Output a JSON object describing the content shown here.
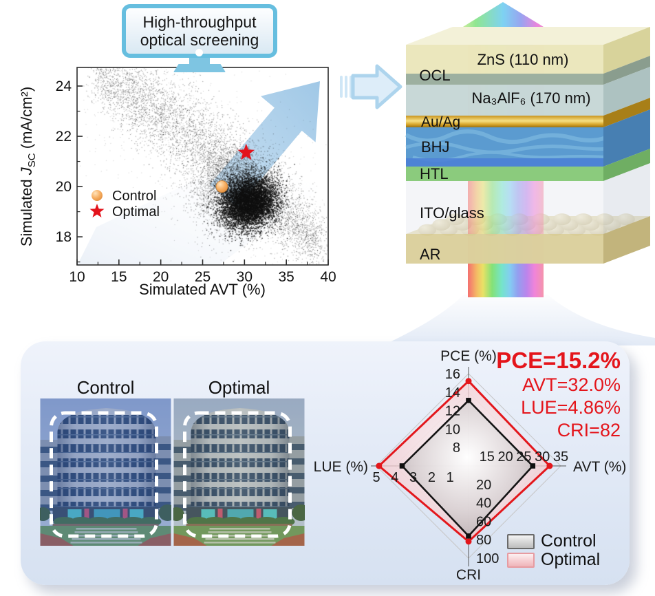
{
  "monitor": {
    "line1": "High-throughput",
    "line2": "optical screening"
  },
  "scatter_labels": {
    "xlabel": "Simulated AVT (%)",
    "ylabel_pre": "Simulated ",
    "ylabel_J": "J",
    "ylabel_sub": "SC",
    "ylabel_post": " (mA/cm²)",
    "legend_control": "Control",
    "legend_optimal": "Optimal"
  },
  "stack": {
    "ocl": "OCL",
    "zns": "ZnS (110 nm)",
    "cryolite": "Na₃AlF₆ (170 nm)",
    "auag": "Au/Ag",
    "bhj": "BHJ",
    "htl": "HTL",
    "ito": "ITO/glass",
    "ar": "AR"
  },
  "panel": {
    "control_label": "Control",
    "optimal_label": "Optimal",
    "stats": {
      "pce": "PCE=15.2%",
      "avt": "AVT=32.0%",
      "lue": "LUE=4.86%",
      "cri": "CRI=82"
    },
    "legend": {
      "control": "Control",
      "optimal": "Optimal"
    }
  },
  "colors": {
    "accent_blue": "#7EC5E2",
    "arrow_blue": "#A6CBE9",
    "stat_red": "#E4151B",
    "optimal_red": "#E3171C",
    "control_black": "#141414",
    "control_tint": "rgba(62,98,178,0.32)",
    "optimal_tint": "rgba(128,142,108,0.20)"
  },
  "chart_data": [
    {
      "type": "scatter",
      "title": "High-throughput optical screening result",
      "xlabel": "Simulated AVT (%)",
      "ylabel": "Simulated JSC (mA/cm2)",
      "xlim": [
        10,
        40
      ],
      "ylim": [
        16.88,
        24.74
      ],
      "xticks": [
        10,
        15,
        20,
        25,
        30,
        35,
        40
      ],
      "yticks": [
        18,
        20,
        22,
        24
      ],
      "legend": [
        "Control",
        "Optimal"
      ],
      "points": {
        "control": [
          27.3,
          20.0
        ],
        "optimal": [
          30.2,
          21.35
        ]
      },
      "cloud": {
        "band": {
          "n": 5200,
          "x0": 12.3,
          "x1": 38.8,
          "yA": 24.45,
          "yB": -5.1,
          "yC": -1.65,
          "sx": 1.05,
          "sy": 0.6,
          "alpha": 0.5
        },
        "mid": {
          "n": 3200,
          "cx": 28.7,
          "cy": 19.85,
          "sx": 2.3,
          "sy": 0.8,
          "alpha": 0.5
        },
        "core": {
          "n": 6500,
          "cx": 30.5,
          "cy": 19.4,
          "sx": 1.65,
          "sy": 0.52,
          "rot": -10,
          "alpha": 0.9
        },
        "halo": {
          "n": 900,
          "alpha": 0.22
        }
      }
    },
    {
      "type": "radar",
      "axes": [
        {
          "key": "PCE",
          "title": "PCE (%)",
          "min": 6,
          "max": 16,
          "ticks": [
            8,
            10,
            12,
            14,
            16
          ]
        },
        {
          "key": "AVT",
          "title": "AVT (%)",
          "min": 10,
          "max": 35,
          "ticks": [
            15,
            20,
            25,
            30,
            35
          ]
        },
        {
          "key": "CRI",
          "title": "CRI",
          "min": 0,
          "max": 100,
          "ticks": [
            20,
            40,
            60,
            80,
            100
          ]
        },
        {
          "key": "LUE",
          "title": "LUE (%)",
          "min": 0,
          "max": 5,
          "ticks": [
            1,
            2,
            3,
            4,
            5
          ]
        }
      ],
      "series": [
        {
          "name": "Control",
          "values": {
            "PCE": 13.1,
            "AVT": 27.4,
            "CRI": 76,
            "LUE": 3.6
          }
        },
        {
          "name": "Optimal",
          "values": {
            "PCE": 15.2,
            "AVT": 32.0,
            "CRI": 82,
            "LUE": 4.86
          }
        }
      ],
      "legend_position": "bottom-right"
    }
  ]
}
